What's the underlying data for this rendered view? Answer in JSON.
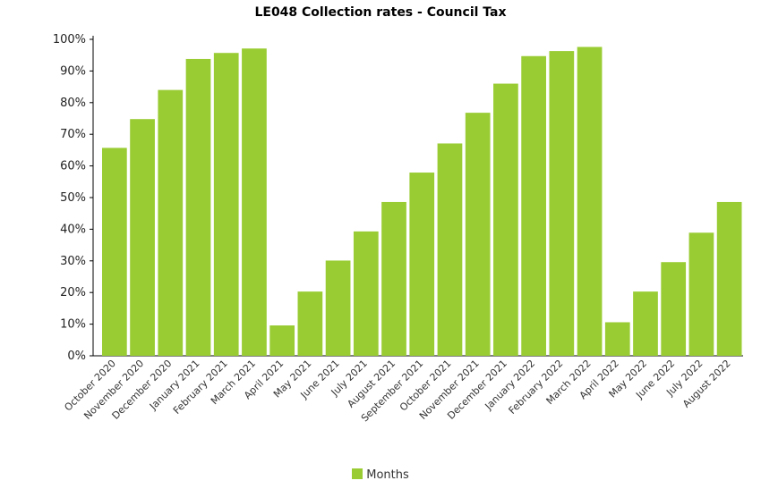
{
  "chart_data": {
    "type": "bar",
    "title": "LE048 Collection rates - Council Tax",
    "xlabel": "",
    "ylabel": "",
    "ylim": [
      0,
      100
    ],
    "yticks": [
      "0%",
      "10%",
      "20%",
      "30%",
      "40%",
      "50%",
      "60%",
      "70%",
      "80%",
      "90%",
      "100%"
    ],
    "categories": [
      "October 2020",
      "November 2020",
      "December 2020",
      "January 2021",
      "February 2021",
      "March 2021",
      "April 2021",
      "May 2021",
      "June 2021",
      "July 2021",
      "August 2021",
      "September 2021",
      "October 2021",
      "November 2021",
      "December 2021",
      "January 2022",
      "February 2022",
      "March 2022",
      "April 2022",
      "May 2022",
      "June 2022",
      "July 2022",
      "August 2022"
    ],
    "series": [
      {
        "name": "Months",
        "color": "#99cc33",
        "values": [
          65.7,
          74.8,
          84.0,
          93.8,
          95.7,
          97.1,
          9.6,
          20.3,
          30.1,
          39.3,
          48.6,
          57.9,
          67.1,
          76.8,
          86.0,
          94.7,
          96.3,
          97.6,
          10.6,
          20.3,
          29.6,
          38.9,
          48.6
        ]
      }
    ],
    "grid": false,
    "legend_position": "bottom-center"
  }
}
